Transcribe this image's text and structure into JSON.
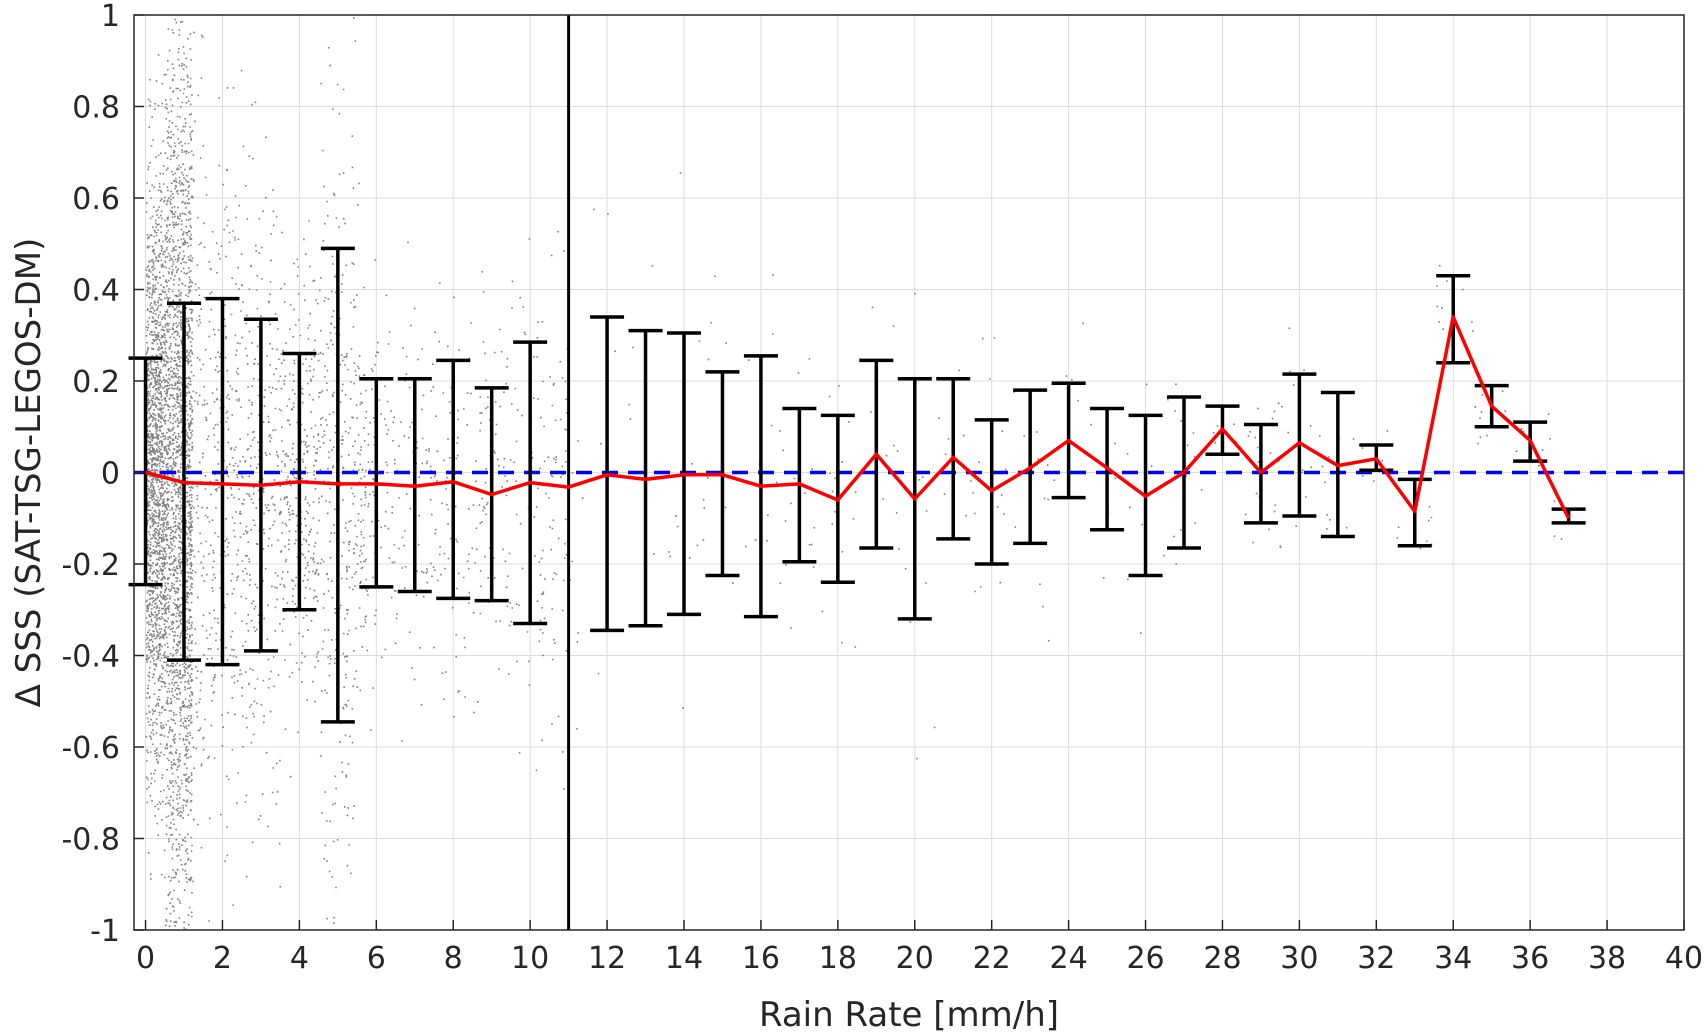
{
  "chart_data": {
    "type": "scatter",
    "title": "",
    "xlabel": "Rain Rate [mm/h]",
    "ylabel": "Δ SSS (SAT-TSG-LEGOS-DM)",
    "xlim": [
      -0.3,
      40
    ],
    "ylim": [
      -1,
      1
    ],
    "xticks": [
      0,
      2,
      4,
      6,
      8,
      10,
      12,
      14,
      16,
      18,
      20,
      22,
      24,
      26,
      28,
      30,
      32,
      34,
      36,
      38,
      40
    ],
    "yticks": [
      -1,
      -0.8,
      -0.6,
      -0.4,
      -0.2,
      0,
      0.2,
      0.4,
      0.6,
      0.8,
      1
    ],
    "xtick_labels": [
      "0",
      "2",
      "4",
      "6",
      "8",
      "10",
      "12",
      "14",
      "16",
      "18",
      "20",
      "22",
      "24",
      "26",
      "28",
      "30",
      "32",
      "34",
      "36",
      "38",
      "40"
    ],
    "ytick_labels": [
      "-1",
      "-0.8",
      "-0.6",
      "-0.4",
      "-0.2",
      "0",
      "0.2",
      "0.4",
      "0.6",
      "0.8",
      "1"
    ],
    "grid": true,
    "vertical_line_x": 11,
    "zero_line": {
      "y": 0,
      "style": "dashed",
      "color": "#0000ff"
    },
    "mean_line": {
      "color": "#ff0000",
      "x": [
        0,
        1,
        2,
        3,
        4,
        5,
        6,
        7,
        8,
        9,
        10,
        11,
        12,
        13,
        14,
        15,
        16,
        17,
        18,
        19,
        20,
        21,
        22,
        23,
        24,
        25,
        26,
        27,
        28,
        29,
        30,
        31,
        32,
        33,
        34,
        35,
        36,
        37
      ],
      "y": [
        0,
        -0.022,
        -0.025,
        -0.028,
        -0.02,
        -0.025,
        -0.025,
        -0.03,
        -0.02,
        -0.048,
        -0.022,
        -0.032,
        -0.005,
        -0.015,
        -0.005,
        -0.005,
        -0.03,
        -0.025,
        -0.06,
        0.04,
        -0.058,
        0.033,
        -0.04,
        0.01,
        0.07,
        0.01,
        -0.052,
        0.0,
        0.095,
        0.0,
        0.065,
        0.015,
        0.03,
        -0.085,
        0.34,
        0.145,
        0.07,
        -0.1
      ]
    },
    "error_bars": {
      "color": "#000000",
      "x": [
        0,
        1,
        2,
        3,
        4,
        5,
        6,
        7,
        8,
        9,
        10,
        11,
        12,
        13,
        14,
        15,
        16,
        17,
        18,
        19,
        20,
        21,
        22,
        23,
        24,
        25,
        26,
        27,
        28,
        29,
        30,
        31,
        32,
        33,
        34,
        35,
        36,
        37
      ],
      "upper": [
        0.25,
        0.37,
        0.38,
        0.335,
        0.26,
        0.49,
        0.205,
        0.205,
        0.245,
        0.185,
        0.285,
        null,
        0.34,
        0.31,
        0.305,
        0.22,
        0.255,
        0.14,
        0.125,
        0.245,
        0.205,
        0.205,
        0.115,
        0.18,
        0.195,
        0.14,
        0.125,
        0.165,
        0.145,
        0.105,
        0.215,
        0.175,
        0.06,
        -0.015,
        0.43,
        0.19,
        0.11,
        -0.08
      ],
      "lower": [
        -0.245,
        -0.41,
        -0.42,
        -0.39,
        -0.3,
        -0.545,
        -0.25,
        -0.26,
        -0.275,
        -0.28,
        -0.33,
        null,
        -0.345,
        -0.335,
        -0.31,
        -0.225,
        -0.315,
        -0.195,
        -0.24,
        -0.165,
        -0.32,
        -0.145,
        -0.2,
        -0.155,
        -0.055,
        -0.125,
        -0.225,
        -0.165,
        0.04,
        -0.11,
        -0.095,
        -0.14,
        0.005,
        -0.16,
        0.24,
        0.1,
        0.025,
        -0.11
      ]
    },
    "scatter": {
      "color": "#808080",
      "marker": "dot"
    },
    "legend": "none"
  }
}
